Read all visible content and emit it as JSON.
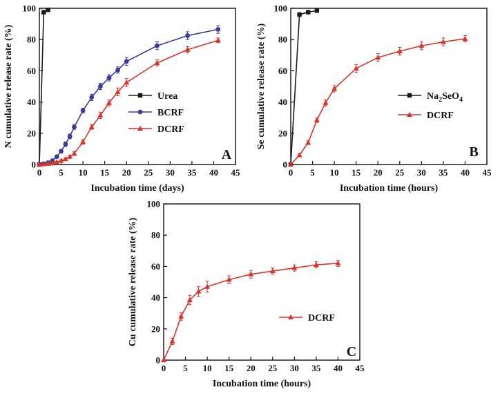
{
  "chart_data": [
    {
      "type": "line",
      "panel_label": "A",
      "title": "",
      "xlabel": "Incubation time (days)",
      "ylabel": "N cumulative release rate (%)",
      "xlim": [
        0,
        45
      ],
      "ylim": [
        0,
        100
      ],
      "xticks": [
        0,
        5,
        10,
        15,
        20,
        25,
        30,
        35,
        40,
        45
      ],
      "yticks": [
        0,
        20,
        40,
        60,
        80,
        100
      ],
      "legend_position": "right",
      "series": [
        {
          "name": "Urea",
          "color": "#1a1a1a",
          "marker": "square",
          "x": [
            0,
            1,
            2
          ],
          "y": [
            0,
            97.5,
            99
          ],
          "err": [
            0,
            0.5,
            0.5
          ]
        },
        {
          "name": "BCRF",
          "color": "#3b3b9a",
          "marker": "circle",
          "x": [
            0,
            1,
            2,
            3,
            4,
            5,
            6,
            7,
            8,
            10,
            12,
            14,
            16,
            18,
            20,
            27,
            34,
            41
          ],
          "y": [
            0,
            0.5,
            1.2,
            2.5,
            5,
            8.5,
            13,
            18,
            24,
            34.5,
            43,
            50,
            55.5,
            60.5,
            66,
            76,
            82.5,
            86.5
          ],
          "err": [
            0,
            0.3,
            0.5,
            0.8,
            1,
            1.2,
            1.5,
            1.5,
            1.5,
            1.5,
            2,
            2,
            2,
            2,
            2.5,
            2.5,
            2.5,
            2.5
          ]
        },
        {
          "name": "DCRF",
          "color": "#d9342b",
          "marker": "triangle",
          "x": [
            0,
            1,
            2,
            3,
            4,
            5,
            6,
            7,
            8,
            10,
            12,
            14,
            16,
            18,
            20,
            27,
            34,
            41
          ],
          "y": [
            0,
            0.2,
            0.5,
            0.8,
            1.5,
            2.5,
            3.5,
            5,
            7,
            14.5,
            24,
            31.5,
            39.5,
            46.5,
            52.5,
            65,
            73.5,
            79.5
          ],
          "err": [
            0,
            0.2,
            0.3,
            0.4,
            0.5,
            0.6,
            0.8,
            1,
            1.2,
            1.5,
            1.5,
            2,
            2,
            2.5,
            2.5,
            2,
            2,
            1.5
          ]
        }
      ]
    },
    {
      "type": "line",
      "panel_label": "B",
      "title": "",
      "xlabel": "Incubation time (hours)",
      "ylabel": "Se cumulative release rate (%)",
      "xlim": [
        0,
        45
      ],
      "ylim": [
        0,
        100
      ],
      "xticks": [
        0,
        5,
        10,
        15,
        20,
        25,
        30,
        35,
        40,
        45
      ],
      "yticks": [
        0,
        20,
        40,
        60,
        80,
        100
      ],
      "legend_position": "right",
      "series": [
        {
          "name": "Na2SeO4",
          "legend_main": "Na",
          "legend_sub1": "2",
          "legend_mid": "SeO",
          "legend_sub2": "4",
          "color": "#1a1a1a",
          "marker": "square",
          "x": [
            0,
            2,
            4,
            6
          ],
          "y": [
            0,
            96,
            97.5,
            98.5
          ],
          "err": [
            0,
            0.5,
            0.5,
            0.5
          ]
        },
        {
          "name": "DCRF",
          "color": "#d9342b",
          "marker": "triangle",
          "x": [
            0,
            2,
            4,
            6,
            8,
            10,
            15,
            20,
            25,
            30,
            35,
            40
          ],
          "y": [
            0,
            6,
            14,
            28.5,
            39.5,
            48.5,
            61.5,
            68.5,
            72.5,
            76,
            78.5,
            80.5
          ],
          "err": [
            0,
            1,
            1.2,
            1.5,
            2,
            2,
            2.5,
            2.5,
            2.5,
            2.5,
            2.5,
            2
          ]
        }
      ]
    },
    {
      "type": "line",
      "panel_label": "C",
      "title": "",
      "xlabel": "Incubation time (hours)",
      "ylabel": "Cu cumulative release rate (%)",
      "xlim": [
        0,
        45
      ],
      "ylim": [
        0,
        100
      ],
      "xticks": [
        0,
        5,
        10,
        15,
        20,
        25,
        30,
        35,
        40,
        45
      ],
      "yticks": [
        0,
        20,
        40,
        60,
        80,
        100
      ],
      "legend_position": "center-right",
      "series": [
        {
          "name": "DCRF",
          "color": "#d9342b",
          "marker": "triangle",
          "x": [
            0,
            2,
            4,
            6,
            8,
            10,
            15,
            20,
            25,
            30,
            35,
            40
          ],
          "y": [
            0,
            12,
            28,
            38.5,
            44,
            47,
            51.5,
            55,
            57,
            59,
            61,
            62
          ],
          "err": [
            0,
            2,
            2.5,
            3,
            3,
            3.5,
            2.5,
            2.5,
            2,
            2,
            2,
            2
          ]
        }
      ]
    }
  ]
}
